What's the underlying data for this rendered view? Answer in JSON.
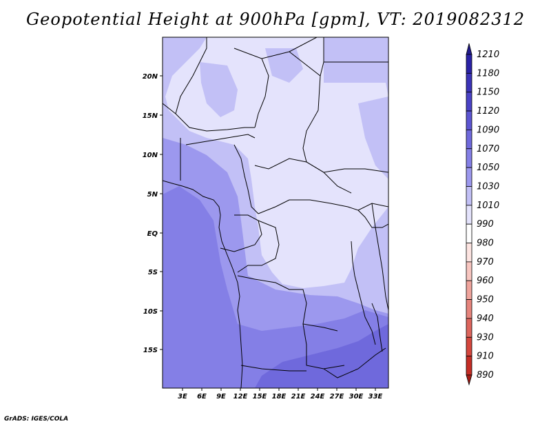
{
  "title": "Geopotential Height at 900hPa [gpm], VT: 2019082312",
  "credit": "GrADS: IGES/COLA",
  "lat_labels": [
    "20N",
    "15N",
    "10N",
    "5N",
    "EQ",
    "5S",
    "10S",
    "15S"
  ],
  "lon_labels": [
    "3E",
    "6E",
    "9E",
    "12E",
    "15E",
    "18E",
    "21E",
    "24E",
    "27E",
    "30E",
    "33E"
  ],
  "colorbar": {
    "labels": [
      "1210",
      "1180",
      "1150",
      "1120",
      "1090",
      "1070",
      "1050",
      "1030",
      "1010",
      "990",
      "980",
      "970",
      "960",
      "950",
      "940",
      "930",
      "910",
      "890"
    ],
    "colors": [
      "#211a8c",
      "#2a22a6",
      "#3b33b8",
      "#4a42c6",
      "#5c55d2",
      "#6f69dc",
      "#847fe6",
      "#9c98ee",
      "#c2c0f6",
      "#e4e3fc",
      "#ffffff",
      "#fde4e1",
      "#f8c6c0",
      "#f0a49c",
      "#e6847c",
      "#dd655c",
      "#d5463d",
      "#c52d25",
      "#a61c16"
    ]
  },
  "map": {
    "region": "Central Africa",
    "lon_range": [
      0,
      35
    ],
    "lat_range": [
      -20,
      25
    ],
    "field_colors": {
      "1010": "#e4e3fc",
      "1030": "#c2c0f6",
      "1050": "#9c98ee",
      "1070": "#847fe6",
      "1090": "#6f69dc"
    }
  }
}
